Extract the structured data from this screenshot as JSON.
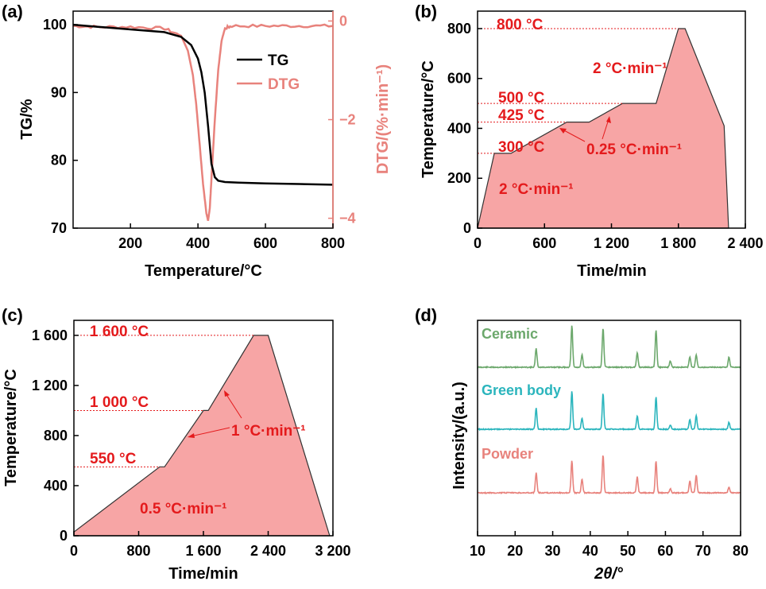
{
  "colors": {
    "tg": "#000000",
    "dtg": "#e8827c",
    "annotation": "#e41a1c",
    "fill": "#f7a5a5",
    "ceramic": "#6ca86c",
    "green_body": "#2bb5bd",
    "powder": "#e8827c"
  },
  "chart_data": [
    {
      "panel": "(a)",
      "type": "line",
      "xlabel": "Temperature/°C",
      "ylabel": "TG/%",
      "y2label": "DTG/(%·min⁻¹)",
      "xlim": [
        30,
        800
      ],
      "ylim": [
        70,
        102
      ],
      "y2lim": [
        -4.2,
        0.2
      ],
      "xticks": [
        "200",
        "400",
        "600",
        "800"
      ],
      "yticks": [
        "70",
        "80",
        "90",
        "100"
      ],
      "y2ticks": [
        "0",
        "−2",
        "−4"
      ],
      "legend": [
        "TG",
        "DTG"
      ],
      "series": [
        {
          "name": "TG",
          "axis": "left",
          "x": [
            30,
            100,
            200,
            300,
            350,
            380,
            400,
            410,
            420,
            430,
            440,
            450,
            460,
            480,
            520,
            600,
            700,
            800
          ],
          "y": [
            100,
            99.7,
            99.3,
            98.9,
            98.2,
            97,
            95,
            93,
            90,
            85,
            79.5,
            77.5,
            77,
            76.8,
            76.7,
            76.6,
            76.5,
            76.4
          ]
        },
        {
          "name": "DTG",
          "axis": "right",
          "x": [
            30,
            100,
            200,
            300,
            350,
            370,
            385,
            395,
            405,
            415,
            425,
            430,
            435,
            440,
            450,
            460,
            470,
            480,
            500,
            600,
            700,
            800
          ],
          "y": [
            -0.1,
            -0.12,
            -0.12,
            -0.15,
            -0.3,
            -0.6,
            -1.1,
            -1.7,
            -2.5,
            -3.3,
            -3.9,
            -4.05,
            -3.8,
            -3.2,
            -2.0,
            -1.0,
            -0.4,
            -0.15,
            -0.1,
            -0.1,
            -0.1,
            -0.1
          ]
        }
      ]
    },
    {
      "panel": "(b)",
      "type": "area",
      "xlabel": "Time/min",
      "ylabel": "Temperature/°C",
      "xlim": [
        0,
        2400
      ],
      "ylim": [
        0,
        870
      ],
      "xticks": [
        "0",
        "600",
        "1 200",
        "1 800",
        "2 400"
      ],
      "xtick_values": [
        0,
        600,
        1200,
        1800,
        2400
      ],
      "yticks": [
        "0",
        "200",
        "400",
        "600",
        "800"
      ],
      "ytick_values": [
        0,
        200,
        400,
        600,
        800
      ],
      "x": [
        0,
        150,
        300,
        800,
        1000,
        1300,
        1600,
        1800,
        1860,
        2210,
        2250
      ],
      "y": [
        0,
        300,
        300,
        425,
        425,
        500,
        500,
        800,
        800,
        410,
        0
      ],
      "reference_lines": [
        800,
        500,
        425,
        300
      ],
      "annotations": [
        "800 °C",
        "500 °C",
        "425 °C",
        "300 °C",
        "2 °C·min⁻¹",
        "0.25 °C·min⁻¹",
        "2 °C·min⁻¹"
      ]
    },
    {
      "panel": "(c)",
      "type": "area",
      "xlabel": "Time/min",
      "ylabel": "Temperature/°C",
      "xlim": [
        0,
        3200
      ],
      "ylim": [
        0,
        1720
      ],
      "xticks": [
        "0",
        "800",
        "1 600",
        "2 400",
        "3 200"
      ],
      "xtick_values": [
        0,
        800,
        1600,
        2400,
        3200
      ],
      "yticks": [
        "0",
        "400",
        "800",
        "1 200",
        "1 600"
      ],
      "ytick_values": [
        0,
        400,
        800,
        1200,
        1600
      ],
      "x": [
        0,
        1060,
        1120,
        1600,
        1660,
        2220,
        2400,
        3160
      ],
      "y": [
        30,
        550,
        550,
        1000,
        1000,
        1600,
        1600,
        0
      ],
      "reference_lines": [
        1600,
        1000,
        550
      ],
      "annotations": [
        "1 600 °C",
        "1 000 °C",
        "550 °C",
        "1 °C·min⁻¹",
        "0.5 °C·min⁻¹"
      ]
    },
    {
      "panel": "(d)",
      "type": "line",
      "xlabel": "2θ/°",
      "ylabel": "Intensity/(a.u.)",
      "xlim": [
        10,
        80
      ],
      "xticks": [
        "10",
        "20",
        "30",
        "40",
        "50",
        "60",
        "70",
        "80"
      ],
      "xtick_values": [
        10,
        20,
        30,
        40,
        50,
        60,
        70,
        80
      ],
      "peaks_2theta": [
        25.6,
        35.1,
        37.8,
        43.4,
        52.5,
        57.5,
        61.3,
        66.5,
        68.2,
        76.9
      ],
      "series": [
        {
          "name": "Ceramic",
          "relative_intensity": [
            0.45,
            1.0,
            0.3,
            0.95,
            0.35,
            0.9,
            0.15,
            0.25,
            0.3,
            0.25
          ]
        },
        {
          "name": "Green body",
          "relative_intensity": [
            0.55,
            1.0,
            0.3,
            0.95,
            0.35,
            0.85,
            0.12,
            0.25,
            0.35,
            0.18
          ]
        },
        {
          "name": "Powder",
          "relative_intensity": [
            0.5,
            0.8,
            0.35,
            0.95,
            0.4,
            0.8,
            0.1,
            0.3,
            0.45,
            0.15
          ]
        }
      ]
    }
  ]
}
